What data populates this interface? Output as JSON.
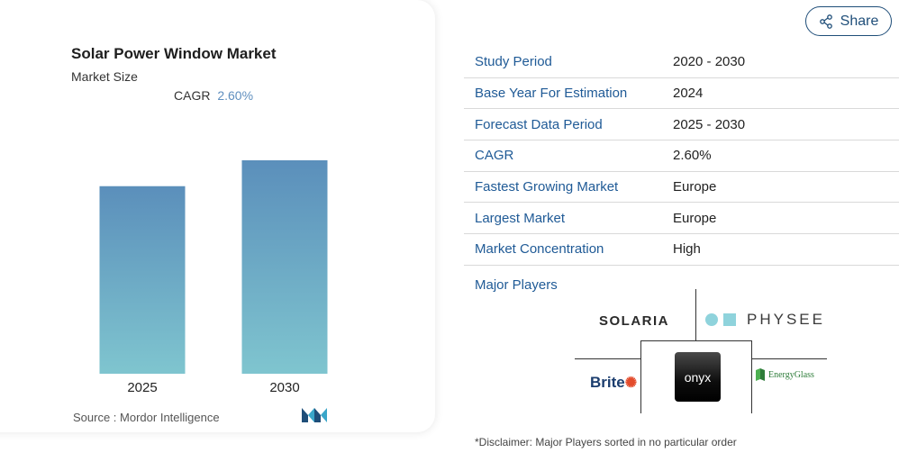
{
  "chart_card": {
    "title": "Solar Power Window Market",
    "subtitle": "Market Size",
    "cagr_label": "CAGR",
    "cagr_value": "2.60%",
    "source_label": "Source :",
    "source_value": "Mordor Intelligence"
  },
  "chart_data": {
    "type": "bar",
    "categories": [
      "2025",
      "2030"
    ],
    "values": [
      1.0,
      1.138
    ],
    "title": "Solar Power Window Market",
    "xlabel": "",
    "ylabel": "",
    "grid": false,
    "colors": {
      "bar_top": "#5b8fbb",
      "bar_bottom": "#7fc5cf"
    }
  },
  "share": {
    "label": "Share",
    "icon": "share-icon"
  },
  "info": [
    {
      "label": "Study Period",
      "value": "2020 - 2030"
    },
    {
      "label": "Base Year For Estimation",
      "value": "2024"
    },
    {
      "label": "Forecast Data Period",
      "value": "2025 - 2030"
    },
    {
      "label": "CAGR",
      "value": "2.60%"
    },
    {
      "label": "Fastest Growing Market",
      "value": "Europe"
    },
    {
      "label": "Largest Market",
      "value": "Europe"
    },
    {
      "label": "Market Concentration",
      "value": "High"
    }
  ],
  "players": {
    "title": "Major Players",
    "solaria": "SOLARIA",
    "physee": "PHYSEE",
    "brite": "Brite",
    "onyx": "onyx",
    "energyglass": "EnergyGlass"
  },
  "disclaimer": "*Disclaimer: Major Players sorted in no particular order"
}
